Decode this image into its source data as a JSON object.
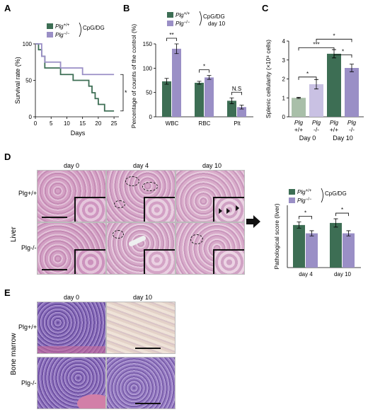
{
  "panels": {
    "a": "A",
    "b": "B",
    "c": "C",
    "d": "D",
    "e": "E"
  },
  "colors": {
    "wt": "#3d6e54",
    "ko": "#9a8fc6",
    "wt_light": "#a9bfa9",
    "ko_light": "#c9c1e3"
  },
  "chart_data": [
    {
      "id": "A",
      "type": "line",
      "step": true,
      "xlabel": "Days",
      "ylabel": "Survival rate (%)",
      "xlim": [
        0,
        27
      ],
      "ylim": [
        0,
        100
      ],
      "xticks": [
        0,
        5,
        10,
        15,
        20,
        25
      ],
      "yticks": [
        0,
        50,
        100
      ],
      "legend": {
        "placement": "top",
        "entries": [
          "Plg+/+",
          "Plg−/−"
        ],
        "bracket_label": "CpG/DG"
      },
      "significance": "*",
      "series": [
        {
          "name": "Plg+/+",
          "color": "#3d6e54",
          "x": [
            0,
            1,
            2,
            3,
            5,
            8,
            12,
            15,
            17,
            18,
            19,
            20,
            22,
            25
          ],
          "y": [
            100,
            92,
            83,
            67,
            67,
            58,
            50,
            50,
            42,
            33,
            25,
            17,
            8,
            8
          ]
        },
        {
          "name": "Plg−/−",
          "color": "#9a8fc6",
          "x": [
            0,
            2,
            3,
            7,
            8,
            13,
            15,
            25
          ],
          "y": [
            100,
            83,
            75,
            75,
            67,
            67,
            58,
            58
          ]
        }
      ]
    },
    {
      "id": "B",
      "type": "bar",
      "ylabel": "Percentage of counts of the control (%)",
      "ylim": [
        0,
        150
      ],
      "yticks": [
        0,
        50,
        100,
        150
      ],
      "categories": [
        "WBC",
        "RBC",
        "Plt"
      ],
      "legend": {
        "placement": "top",
        "entries": [
          "Plg+/+",
          "Plg−/−"
        ],
        "bracket_label": "CpG/DG",
        "sub_label": "day 10"
      },
      "series": [
        {
          "name": "Plg+/+",
          "color": "#3d6e54",
          "values": [
            73,
            70,
            33
          ],
          "errors": [
            6,
            3,
            6
          ]
        },
        {
          "name": "Plg−/−",
          "color": "#9a8fc6",
          "values": [
            140,
            81,
            20
          ],
          "errors": [
            10,
            4,
            4
          ]
        }
      ],
      "significance": [
        "**",
        "*",
        "N.S"
      ]
    },
    {
      "id": "C",
      "type": "bar",
      "ylabel": "Splenic cellularity (×10⁸ cells)",
      "ylim": [
        0,
        4
      ],
      "yticks": [
        0,
        1,
        2,
        3,
        4
      ],
      "categories": [
        "Plg +/+",
        "Plg -/-",
        "Plg +/+",
        "Plg -/-"
      ],
      "groups": [
        "Day 0",
        "Day 10"
      ],
      "values": [
        1.0,
        1.72,
        3.33,
        2.58
      ],
      "errors": [
        0.03,
        0.25,
        0.22,
        0.2
      ],
      "bar_colors": [
        "#a9bfa9",
        "#c9c1e3",
        "#3d6e54",
        "#9a8fc6"
      ],
      "significance": [
        "*",
        "***",
        "*",
        "*"
      ]
    },
    {
      "id": "D",
      "type": "bar",
      "ylabel": "Pathological score (liver)",
      "ylim": [
        0,
        6
      ],
      "yticks": [
        0,
        1,
        2,
        3,
        4,
        5,
        6
      ],
      "categories": [
        "day 4",
        "day 10"
      ],
      "legend": {
        "placement": "top",
        "entries": [
          "Plg+/+",
          "Plg−/−"
        ],
        "bracket_label": "CpG/DG"
      },
      "series": [
        {
          "name": "Plg+/+",
          "color": "#3d6e54",
          "values": [
            4.1,
            4.3
          ],
          "errors": [
            0.3,
            0.4
          ]
        },
        {
          "name": "Plg−/−",
          "color": "#9a8fc6",
          "values": [
            3.3,
            3.3
          ],
          "errors": [
            0.25,
            0.25
          ]
        }
      ],
      "significance": [
        "*",
        "*"
      ]
    }
  ],
  "micrographs": {
    "liver": {
      "tissue": "Liver",
      "columns": [
        "day 0",
        "day 4",
        "day 10"
      ],
      "rows": [
        "Plg+/+",
        "Plg-/-"
      ]
    },
    "bone_marrow": {
      "tissue": "Bone marrow",
      "columns": [
        "day 0",
        "day 10"
      ],
      "rows": [
        "Plg+/+",
        "Plg-/-"
      ]
    }
  }
}
